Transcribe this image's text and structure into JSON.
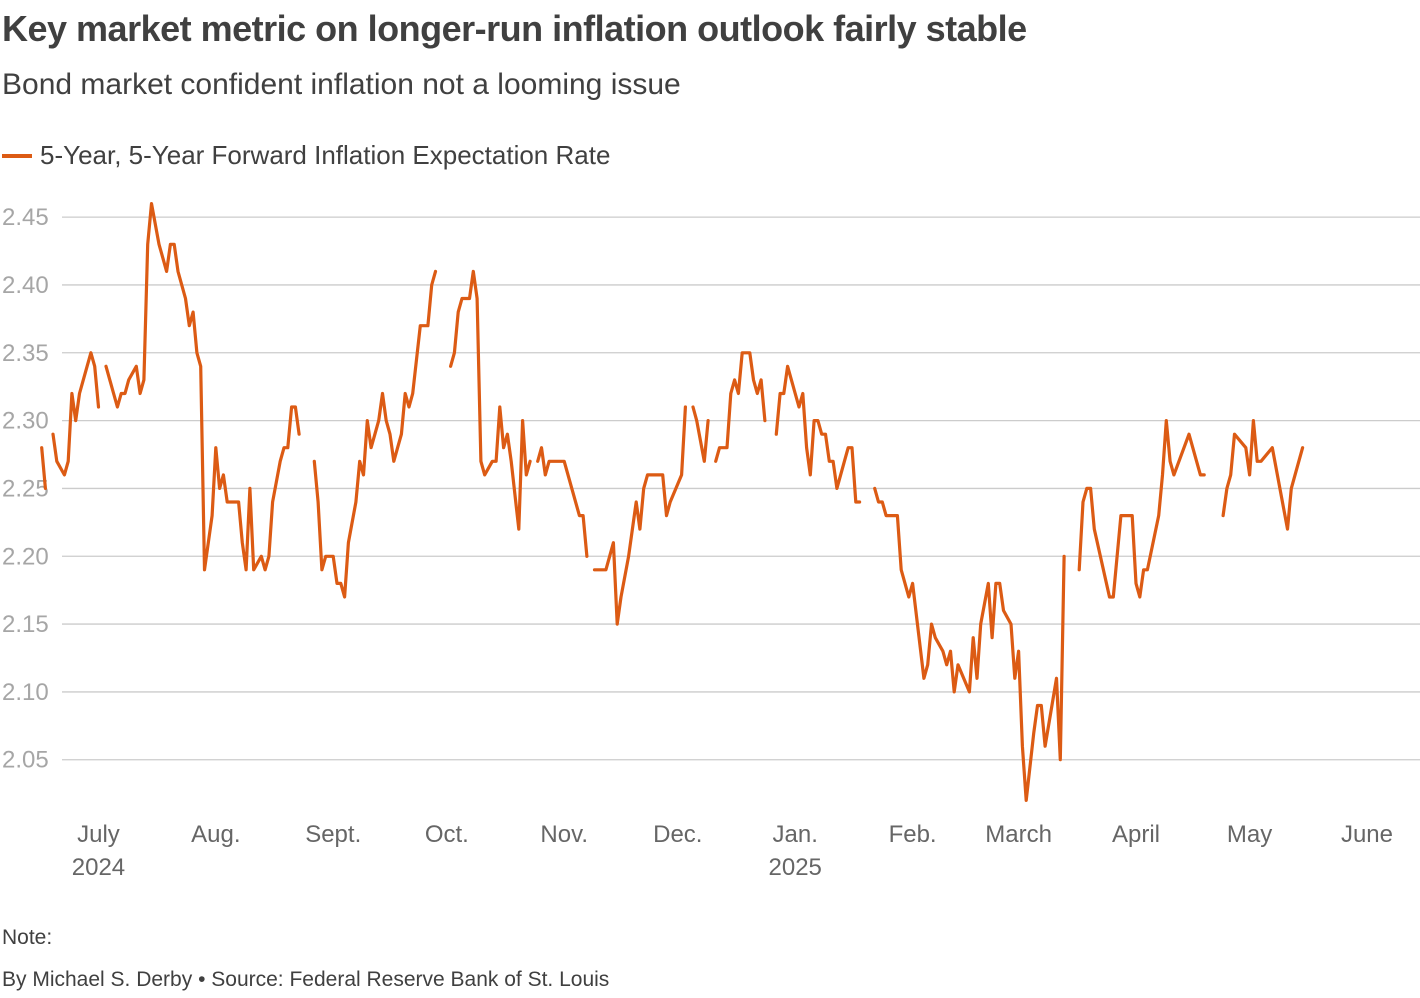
{
  "chart_data": {
    "type": "line",
    "title": "Key market metric on longer-run inflation outlook fairly stable",
    "subtitle": "Bond market confident inflation not a looming issue",
    "xlabel": "",
    "ylabel": "",
    "ylim": [
      2.01,
      2.47
    ],
    "yticks": [
      2.05,
      2.1,
      2.15,
      2.2,
      2.25,
      2.3,
      2.35,
      2.4,
      2.45
    ],
    "ytick_labels": [
      "2.05",
      "2.10",
      "2.15",
      "2.20",
      "2.25",
      "2.30",
      "2.35",
      "2.40",
      "2.45"
    ],
    "xlim": [
      -11,
      364
    ],
    "xticks": [
      {
        "x": 15,
        "label": "July",
        "year": "2024"
      },
      {
        "x": 46,
        "label": "Aug.",
        "year": ""
      },
      {
        "x": 77,
        "label": "Sept.",
        "year": ""
      },
      {
        "x": 107,
        "label": "Oct.",
        "year": ""
      },
      {
        "x": 138,
        "label": "Nov.",
        "year": ""
      },
      {
        "x": 168,
        "label": "Dec.",
        "year": ""
      },
      {
        "x": 199,
        "label": "Jan.",
        "year": "2025"
      },
      {
        "x": 230,
        "label": "Feb.",
        "year": ""
      },
      {
        "x": 258,
        "label": "March",
        "year": ""
      },
      {
        "x": 289,
        "label": "April",
        "year": ""
      },
      {
        "x": 319,
        "label": "May",
        "year": ""
      },
      {
        "x": 350,
        "label": "June",
        "year": ""
      }
    ],
    "grid": true,
    "legend_position": "top-left",
    "series": [
      {
        "name": "5-Year, 5-Year Forward Inflation Expectation Rate",
        "color": "#dc5b14",
        "segments": [
          [
            [
              0,
              2.28
            ],
            [
              1,
              2.25
            ]
          ],
          [
            [
              3,
              2.29
            ],
            [
              4,
              2.27
            ],
            [
              6,
              2.26
            ],
            [
              7,
              2.27
            ],
            [
              8,
              2.32
            ],
            [
              9,
              2.3
            ],
            [
              10,
              2.32
            ],
            [
              12,
              2.34
            ],
            [
              13,
              2.35
            ],
            [
              14,
              2.34
            ],
            [
              15,
              2.31
            ]
          ],
          [
            [
              17,
              2.34
            ],
            [
              18,
              2.33
            ],
            [
              19,
              2.32
            ],
            [
              20,
              2.31
            ],
            [
              21,
              2.32
            ],
            [
              22,
              2.32
            ],
            [
              23,
              2.33
            ],
            [
              25,
              2.34
            ],
            [
              26,
              2.32
            ],
            [
              27,
              2.33
            ],
            [
              28,
              2.43
            ],
            [
              29,
              2.46
            ],
            [
              31,
              2.43
            ],
            [
              32,
              2.42
            ],
            [
              33,
              2.41
            ],
            [
              34,
              2.43
            ],
            [
              35,
              2.43
            ],
            [
              36,
              2.41
            ],
            [
              38,
              2.39
            ],
            [
              39,
              2.37
            ],
            [
              40,
              2.38
            ],
            [
              41,
              2.35
            ],
            [
              42,
              2.34
            ],
            [
              43,
              2.19
            ],
            [
              45,
              2.23
            ],
            [
              46,
              2.28
            ],
            [
              47,
              2.25
            ],
            [
              48,
              2.26
            ],
            [
              49,
              2.24
            ],
            [
              51,
              2.24
            ],
            [
              52,
              2.24
            ],
            [
              53,
              2.21
            ],
            [
              54,
              2.19
            ],
            [
              55,
              2.25
            ],
            [
              56,
              2.19
            ],
            [
              58,
              2.2
            ],
            [
              59,
              2.19
            ],
            [
              60,
              2.2
            ],
            [
              61,
              2.24
            ],
            [
              63,
              2.27
            ],
            [
              64,
              2.28
            ],
            [
              65,
              2.28
            ],
            [
              66,
              2.31
            ],
            [
              67,
              2.31
            ],
            [
              68,
              2.29
            ]
          ],
          [
            [
              72,
              2.27
            ],
            [
              73,
              2.24
            ],
            [
              74,
              2.19
            ],
            [
              75,
              2.2
            ],
            [
              77,
              2.2
            ],
            [
              78,
              2.18
            ],
            [
              79,
              2.18
            ],
            [
              80,
              2.17
            ],
            [
              81,
              2.21
            ],
            [
              83,
              2.24
            ],
            [
              84,
              2.27
            ],
            [
              85,
              2.26
            ],
            [
              86,
              2.3
            ],
            [
              87,
              2.28
            ],
            [
              88,
              2.29
            ],
            [
              89,
              2.3
            ],
            [
              90,
              2.32
            ],
            [
              91,
              2.3
            ],
            [
              92,
              2.29
            ],
            [
              93,
              2.27
            ],
            [
              94,
              2.28
            ],
            [
              95,
              2.29
            ],
            [
              96,
              2.32
            ],
            [
              97,
              2.31
            ],
            [
              98,
              2.32
            ],
            [
              100,
              2.37
            ],
            [
              101,
              2.37
            ],
            [
              102,
              2.37
            ],
            [
              103,
              2.4
            ],
            [
              104,
              2.41
            ]
          ],
          [
            [
              108,
              2.34
            ],
            [
              109,
              2.35
            ],
            [
              110,
              2.38
            ],
            [
              111,
              2.39
            ],
            [
              113,
              2.39
            ],
            [
              114,
              2.41
            ],
            [
              115,
              2.39
            ],
            [
              116,
              2.27
            ],
            [
              117,
              2.26
            ],
            [
              119,
              2.27
            ],
            [
              120,
              2.27
            ],
            [
              121,
              2.31
            ],
            [
              122,
              2.28
            ],
            [
              123,
              2.29
            ],
            [
              124,
              2.27
            ],
            [
              126,
              2.22
            ],
            [
              127,
              2.3
            ],
            [
              128,
              2.26
            ],
            [
              129,
              2.27
            ]
          ],
          [
            [
              131,
              2.27
            ],
            [
              132,
              2.28
            ],
            [
              133,
              2.26
            ],
            [
              134,
              2.27
            ],
            [
              137,
              2.27
            ],
            [
              138,
              2.27
            ],
            [
              140,
              2.25
            ],
            [
              142,
              2.23
            ],
            [
              143,
              2.23
            ],
            [
              144,
              2.2
            ]
          ],
          [
            [
              146,
              2.19
            ],
            [
              149,
              2.19
            ],
            [
              151,
              2.21
            ],
            [
              152,
              2.15
            ],
            [
              153,
              2.17
            ],
            [
              155,
              2.2
            ],
            [
              156,
              2.22
            ],
            [
              157,
              2.24
            ],
            [
              158,
              2.22
            ],
            [
              159,
              2.25
            ],
            [
              160,
              2.26
            ],
            [
              164,
              2.26
            ],
            [
              165,
              2.23
            ],
            [
              166,
              2.24
            ],
            [
              169,
              2.26
            ],
            [
              170,
              2.31
            ]
          ],
          [
            [
              172,
              2.31
            ],
            [
              173,
              2.3
            ],
            [
              175,
              2.27
            ],
            [
              176,
              2.3
            ]
          ],
          [
            [
              178,
              2.27
            ],
            [
              179,
              2.28
            ],
            [
              181,
              2.28
            ],
            [
              182,
              2.32
            ],
            [
              183,
              2.33
            ],
            [
              184,
              2.32
            ],
            [
              185,
              2.35
            ],
            [
              187,
              2.35
            ],
            [
              188,
              2.33
            ],
            [
              189,
              2.32
            ],
            [
              190,
              2.33
            ],
            [
              191,
              2.3
            ]
          ],
          [
            [
              194,
              2.29
            ],
            [
              195,
              2.32
            ],
            [
              196,
              2.32
            ],
            [
              197,
              2.34
            ],
            [
              199,
              2.32
            ],
            [
              200,
              2.31
            ],
            [
              201,
              2.32
            ],
            [
              202,
              2.28
            ],
            [
              203,
              2.26
            ],
            [
              204,
              2.3
            ],
            [
              205,
              2.3
            ],
            [
              206,
              2.29
            ],
            [
              207,
              2.29
            ],
            [
              208,
              2.27
            ],
            [
              209,
              2.27
            ],
            [
              210,
              2.25
            ],
            [
              212,
              2.27
            ],
            [
              213,
              2.28
            ],
            [
              214,
              2.28
            ],
            [
              215,
              2.24
            ],
            [
              216,
              2.24
            ]
          ],
          [
            [
              220,
              2.25
            ],
            [
              221,
              2.24
            ],
            [
              222,
              2.24
            ],
            [
              223,
              2.23
            ],
            [
              226,
              2.23
            ],
            [
              227,
              2.19
            ],
            [
              229,
              2.17
            ],
            [
              230,
              2.18
            ],
            [
              233,
              2.11
            ],
            [
              234,
              2.12
            ],
            [
              235,
              2.15
            ],
            [
              236,
              2.14
            ],
            [
              238,
              2.13
            ],
            [
              239,
              2.12
            ],
            [
              240,
              2.13
            ],
            [
              241,
              2.1
            ],
            [
              242,
              2.12
            ],
            [
              245,
              2.1
            ],
            [
              246,
              2.14
            ],
            [
              247,
              2.11
            ],
            [
              248,
              2.15
            ],
            [
              250,
              2.18
            ],
            [
              251,
              2.14
            ],
            [
              252,
              2.18
            ],
            [
              253,
              2.18
            ],
            [
              254,
              2.16
            ],
            [
              256,
              2.15
            ],
            [
              257,
              2.11
            ],
            [
              258,
              2.13
            ],
            [
              259,
              2.06
            ],
            [
              260,
              2.02
            ],
            [
              262,
              2.07
            ],
            [
              263,
              2.09
            ],
            [
              264,
              2.09
            ],
            [
              265,
              2.06
            ],
            [
              268,
              2.11
            ],
            [
              269,
              2.05
            ],
            [
              270,
              2.2
            ]
          ],
          [
            [
              274,
              2.19
            ],
            [
              275,
              2.24
            ],
            [
              276,
              2.25
            ],
            [
              277,
              2.25
            ],
            [
              278,
              2.22
            ],
            [
              282,
              2.17
            ],
            [
              283,
              2.17
            ],
            [
              285,
              2.23
            ],
            [
              286,
              2.23
            ],
            [
              288,
              2.23
            ],
            [
              289,
              2.18
            ],
            [
              290,
              2.17
            ],
            [
              291,
              2.19
            ],
            [
              292,
              2.19
            ],
            [
              295,
              2.23
            ],
            [
              296,
              2.26
            ],
            [
              297,
              2.3
            ],
            [
              298,
              2.27
            ],
            [
              299,
              2.26
            ],
            [
              303,
              2.29
            ],
            [
              306,
              2.26
            ],
            [
              307,
              2.26
            ]
          ],
          [
            [
              312,
              2.23
            ],
            [
              313,
              2.25
            ],
            [
              314,
              2.26
            ],
            [
              315,
              2.29
            ],
            [
              318,
              2.28
            ],
            [
              319,
              2.26
            ],
            [
              320,
              2.3
            ],
            [
              321,
              2.27
            ],
            [
              322,
              2.27
            ],
            [
              325,
              2.28
            ],
            [
              327,
              2.25
            ],
            [
              329,
              2.22
            ],
            [
              330,
              2.25
            ],
            [
              333,
              2.28
            ]
          ]
        ]
      }
    ],
    "note": "Note:",
    "source": "By Michael S. Derby • Source: Federal Reserve Bank of St. Louis"
  }
}
